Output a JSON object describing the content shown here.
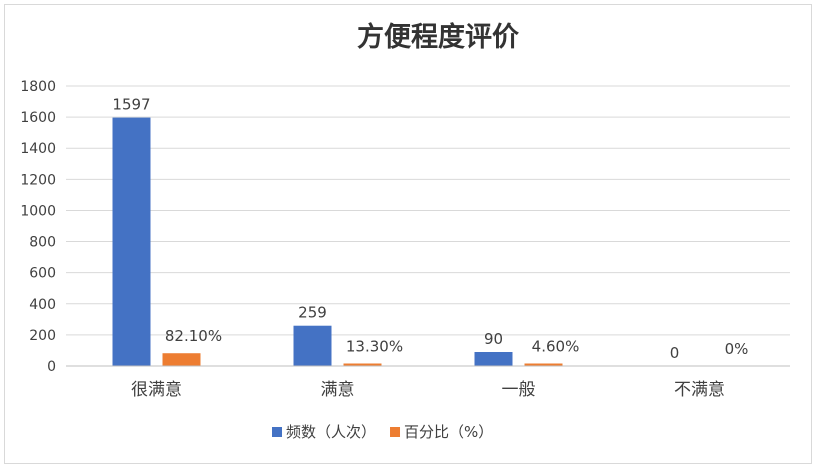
{
  "chart_data": {
    "type": "bar",
    "title": "方便程度评价",
    "categories": [
      "很满意",
      "满意",
      "一般",
      "不满意"
    ],
    "series": [
      {
        "name": "频数（人次）",
        "values": [
          1597,
          259,
          90,
          0
        ],
        "labels": [
          "1597",
          "259",
          "90",
          "0"
        ],
        "color": "#4472c4"
      },
      {
        "name": "百分比（%）",
        "values": [
          82.1,
          13.3,
          4.6,
          0
        ],
        "labels": [
          "82.10%",
          "13.30%",
          "4.60%",
          "0%"
        ],
        "color": "#ed7d31"
      }
    ],
    "ylim": [
      0,
      1800
    ],
    "yticks": [
      0,
      200,
      400,
      600,
      800,
      1000,
      1200,
      1400,
      1600,
      1800
    ],
    "grid": true,
    "legend_position": "bottom",
    "xlabel": "",
    "ylabel": ""
  }
}
